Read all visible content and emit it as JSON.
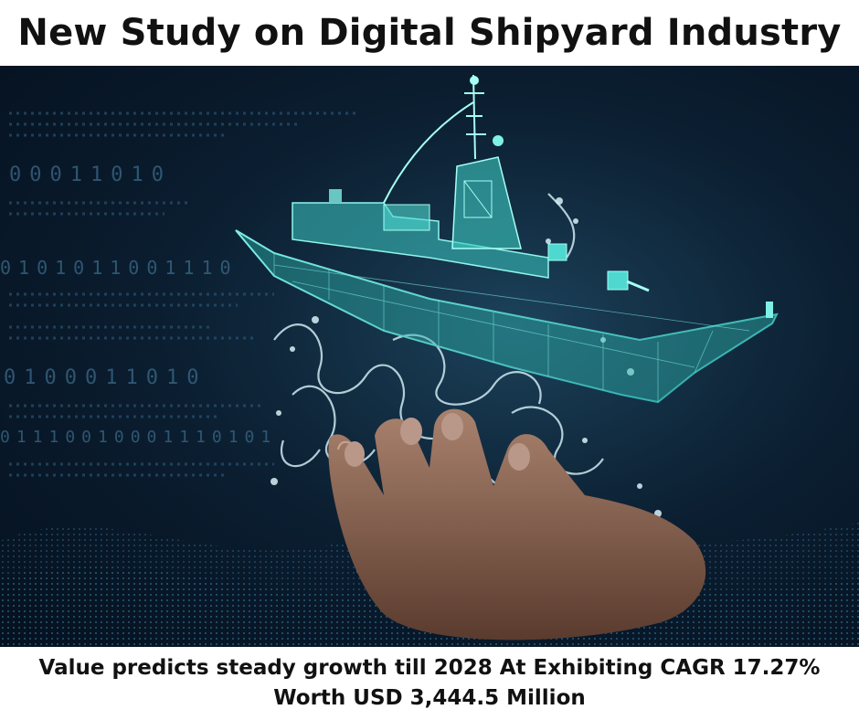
{
  "header": {
    "title": "New Study on Digital Shipyard Industry"
  },
  "image": {
    "binary_rows": [
      "00011010",
      "0101011001110",
      "0100011010",
      "01110010001110101"
    ],
    "subject_icons": [
      "wireframe-ship-icon",
      "water-splash-icon",
      "hand-icon"
    ]
  },
  "footer": {
    "line1": "Value predicts steady growth till 2028 At Exhibiting CAGR 17.27%",
    "line2": "Worth USD 3,444.5 Million"
  },
  "colors": {
    "background_dark": "#05111f",
    "wireframe_cyan": "#4fd8d0",
    "text": "#111111"
  }
}
